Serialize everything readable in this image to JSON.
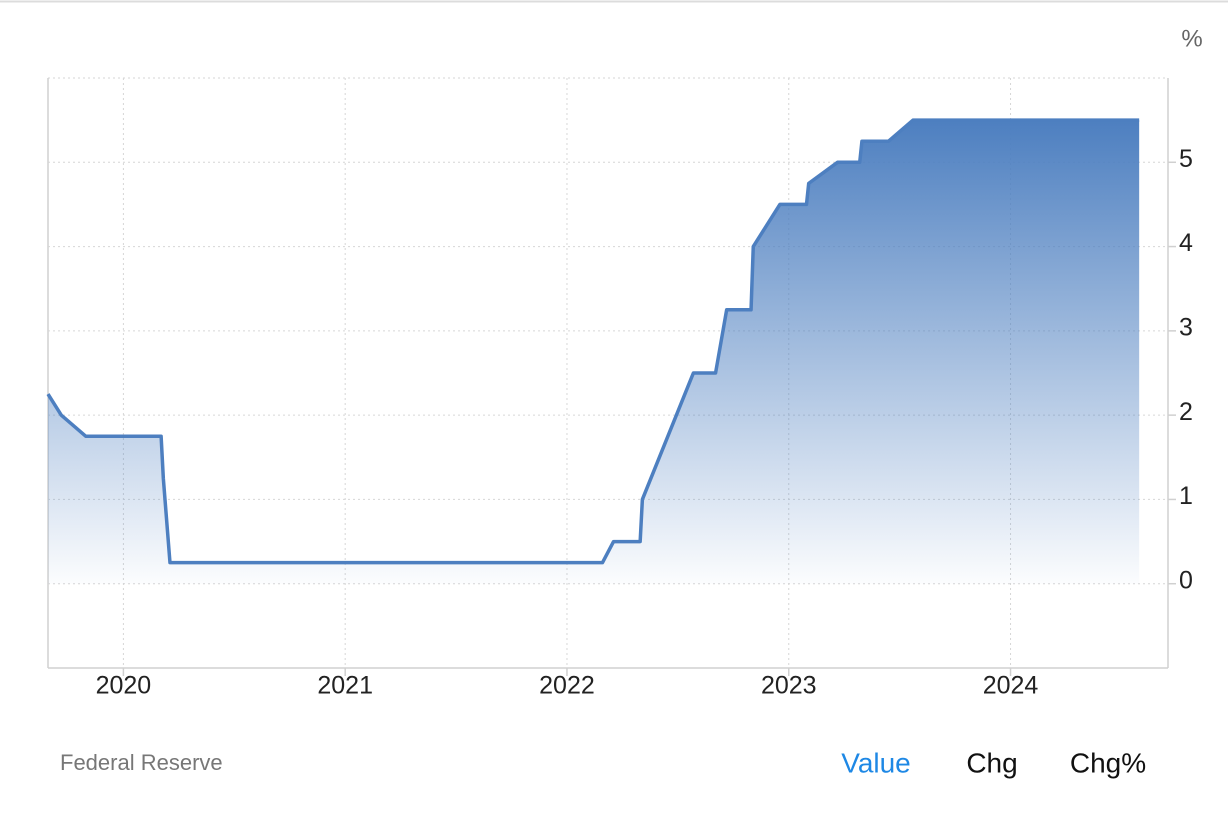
{
  "chart_data": {
    "type": "area",
    "unit": "%",
    "color": "#4d7fc0",
    "grid": true,
    "x": [
      2019.66,
      2019.72,
      2019.83,
      2020.17,
      2020.18,
      2020.21,
      2022.16,
      2022.21,
      2022.33,
      2022.34,
      2022.57,
      2022.67,
      2022.72,
      2022.83,
      2022.84,
      2022.96,
      2023.08,
      2023.09,
      2023.22,
      2023.32,
      2023.33,
      2023.45,
      2023.56,
      2024.58
    ],
    "values": [
      2.25,
      2.0,
      1.75,
      1.75,
      1.25,
      0.25,
      0.25,
      0.5,
      0.5,
      1.0,
      2.5,
      2.5,
      3.25,
      3.25,
      4.0,
      4.5,
      4.5,
      4.75,
      5.0,
      5.0,
      5.25,
      5.25,
      5.5,
      5.5
    ],
    "xlim": [
      2019.66,
      2024.71
    ],
    "xticks": [
      2020,
      2021,
      2022,
      2023,
      2024
    ],
    "ylim": [
      -1,
      6
    ],
    "yticks": [
      0,
      1,
      2,
      3,
      4,
      5
    ]
  },
  "footer": {
    "source": "Federal Reserve",
    "tabs": [
      "Value",
      "Chg",
      "Chg%"
    ],
    "active_tab": 0,
    "active_color": "#1e88e5"
  }
}
